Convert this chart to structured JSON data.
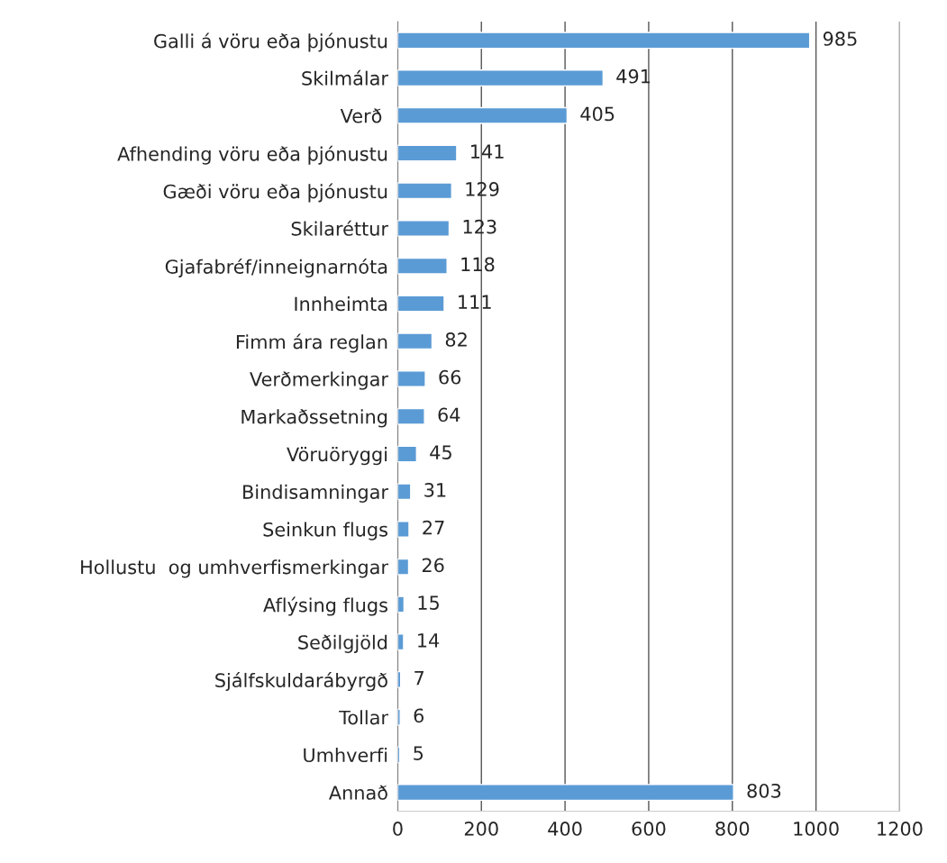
{
  "chart_data": {
    "type": "bar",
    "orientation": "horizontal",
    "categories": [
      "Galli á vöru eða þjónustu",
      "Skilmálar",
      "Verð ",
      "Afhending vöru eða þjónustu",
      "Gæði vöru eða þjónustu",
      "Skilaréttur",
      "Gjafabréf/inneignarnóta",
      "Innheimta",
      "Fimm ára reglan",
      "Verðmerkingar",
      "Markaðssetning",
      "Vöruöryggi",
      "Bindisamningar",
      "Seinkun flugs",
      "Hollustu  og umhverfismerkingar",
      "Aflýsing flugs",
      "Seðilgjöld",
      "Sjálfskuldarábyrgð",
      "Tollar",
      "Umhverfi",
      "Annað"
    ],
    "values": [
      985,
      491,
      405,
      141,
      129,
      123,
      118,
      111,
      82,
      66,
      64,
      45,
      31,
      27,
      26,
      15,
      14,
      7,
      6,
      5,
      803
    ],
    "color": "#5b9bd5",
    "xlim": [
      0,
      1200
    ],
    "xticks": [
      0,
      200,
      400,
      600,
      800,
      1000,
      1200
    ],
    "grid": "x",
    "data_labels": true,
    "legend": false
  }
}
